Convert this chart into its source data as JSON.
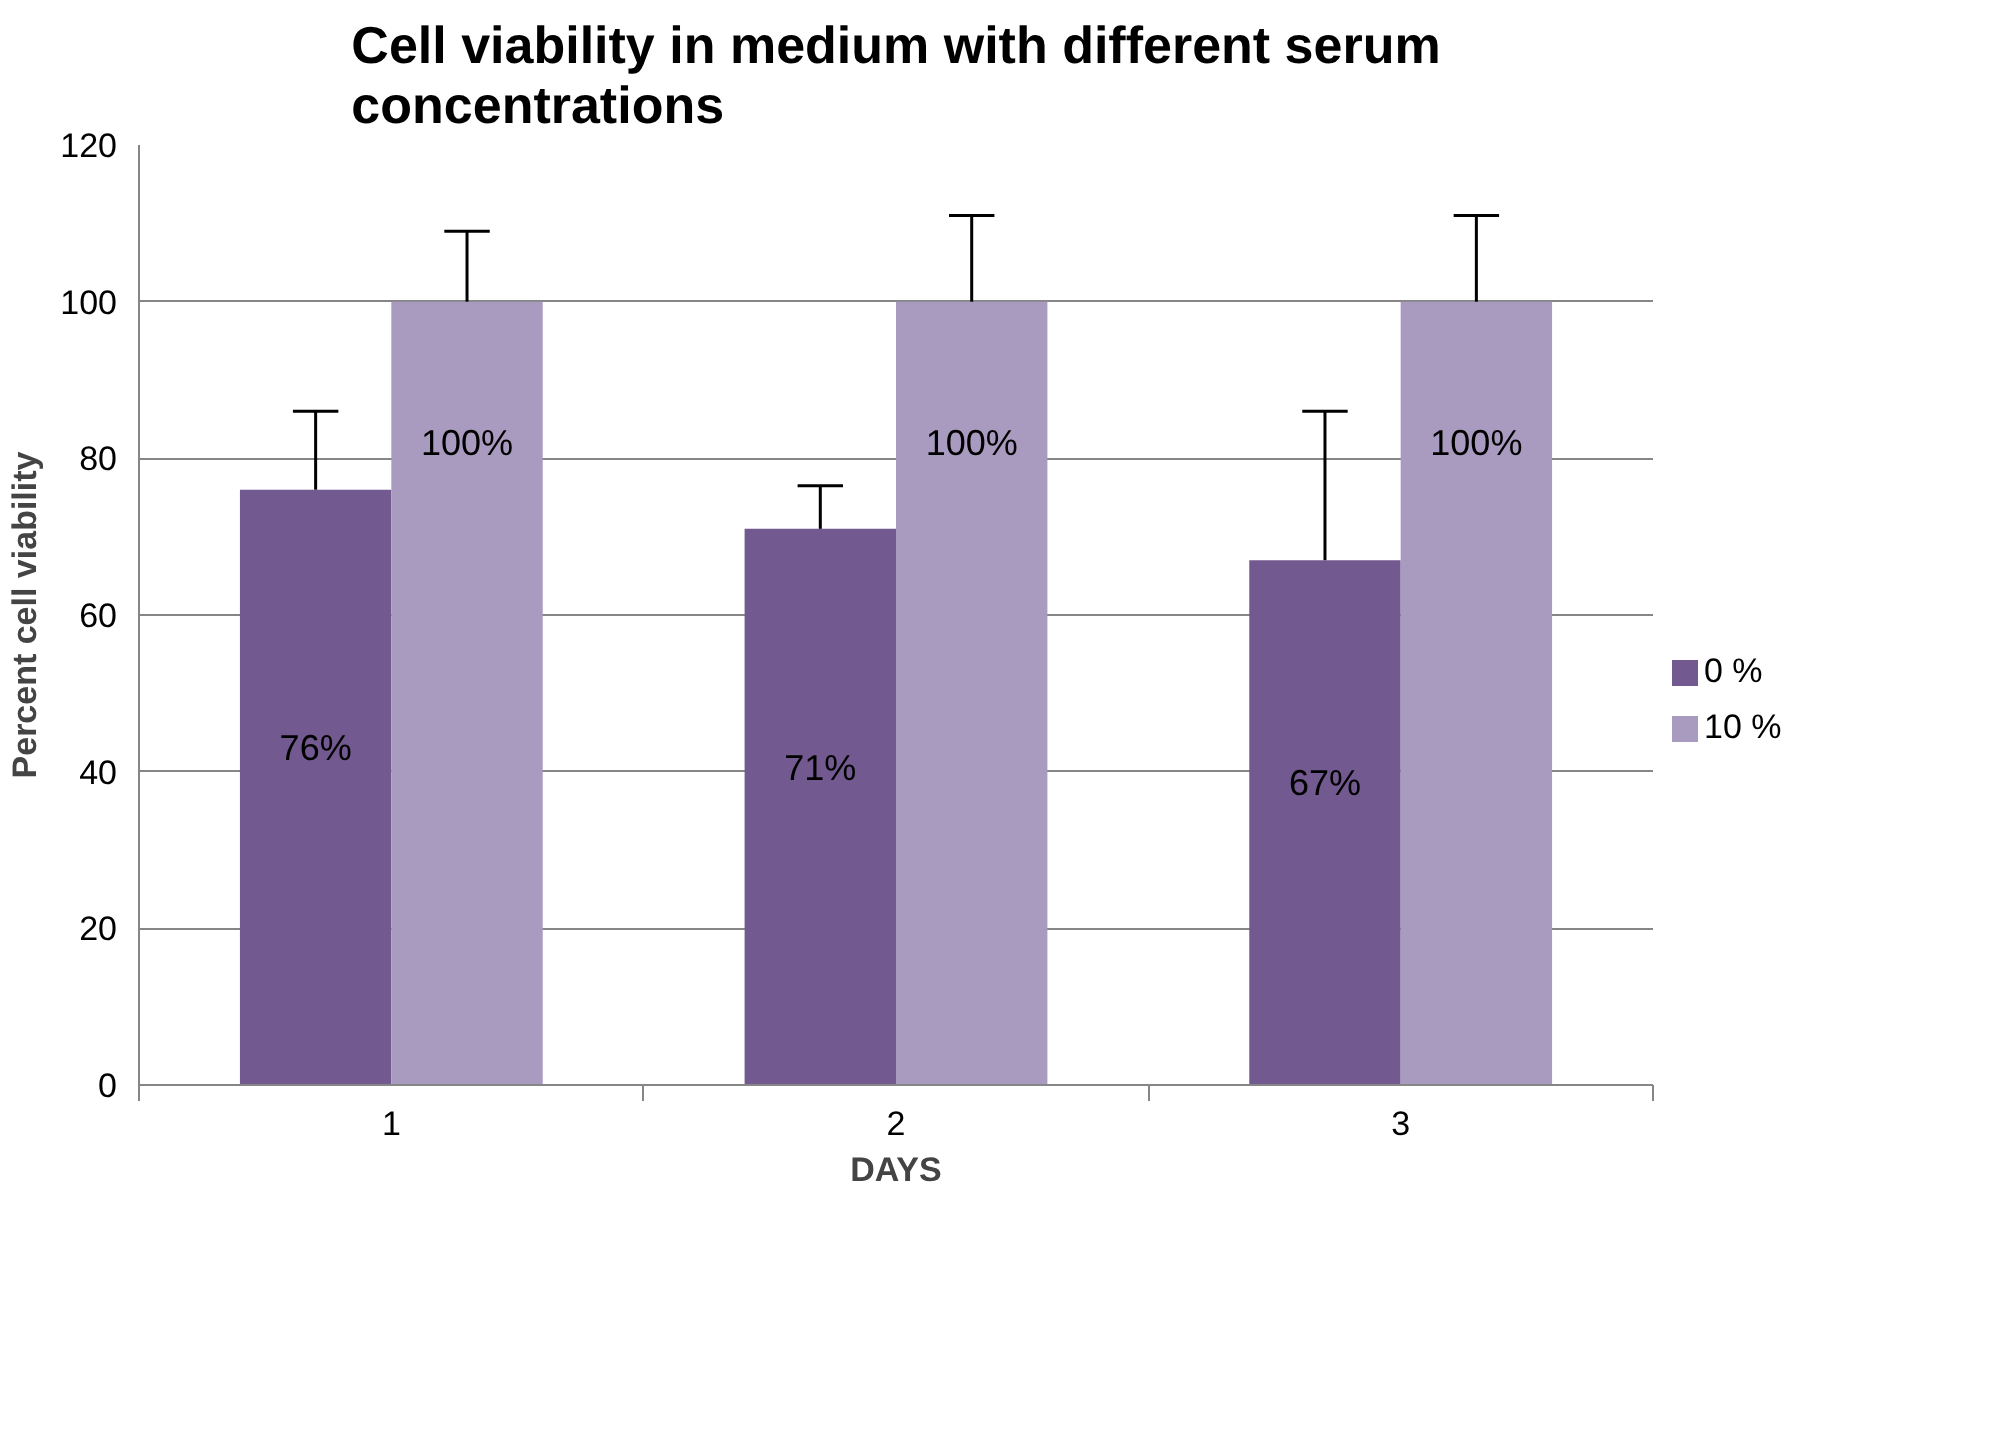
{
  "chart_data": {
    "type": "bar",
    "title": "Cell viability in medium with different serum concentrations",
    "xlabel": "DAYS",
    "ylabel": "Percent cell viability",
    "categories": [
      "1",
      "2",
      "3"
    ],
    "series": [
      {
        "name": "0 %",
        "color": "#72598f",
        "values": [
          76,
          71,
          67
        ],
        "errors": [
          [
            76,
            86
          ],
          [
            71,
            76.5
          ],
          [
            67,
            86
          ]
        ],
        "value_labels": [
          "76%",
          "71%",
          "67%"
        ]
      },
      {
        "name": "10 %",
        "color": "#a99bbf",
        "values": [
          100,
          100,
          100
        ],
        "errors": [
          [
            100,
            109
          ],
          [
            100,
            111
          ],
          [
            100,
            111
          ]
        ],
        "value_labels": [
          "100%",
          "100%",
          "100%"
        ]
      }
    ],
    "ylim": [
      0,
      120
    ],
    "yticks": [
      0,
      20,
      40,
      60,
      80,
      100,
      120
    ],
    "grid": "y",
    "legend": "right"
  }
}
